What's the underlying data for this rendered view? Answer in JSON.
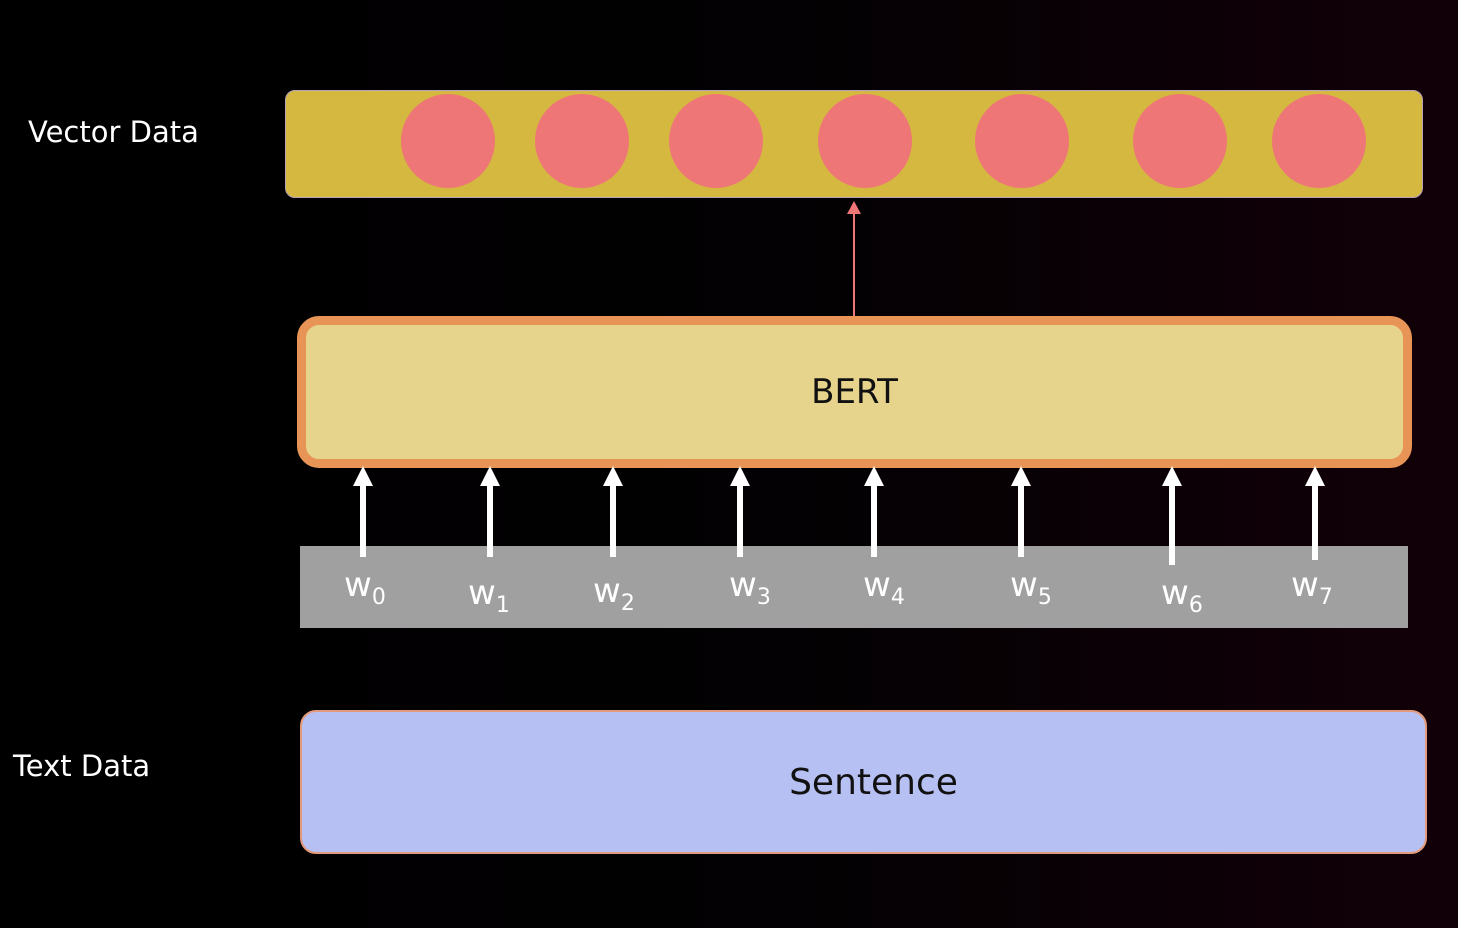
{
  "labels": {
    "vector_data": "Vector Data",
    "text_data": "Text Data"
  },
  "model": {
    "name": "BERT"
  },
  "input": {
    "name": "Sentence"
  },
  "vector": {
    "count": 7
  },
  "tokens": [
    {
      "base": "w",
      "sub": "0"
    },
    {
      "base": "w",
      "sub": "1"
    },
    {
      "base": "w",
      "sub": "2"
    },
    {
      "base": "w",
      "sub": "3"
    },
    {
      "base": "w",
      "sub": "4"
    },
    {
      "base": "w",
      "sub": "5"
    },
    {
      "base": "w",
      "sub": "6"
    },
    {
      "base": "w",
      "sub": "7"
    }
  ],
  "colors": {
    "vector_bar": "#d5b83f",
    "vector_circle": "#ee7676",
    "bert_fill": "#e7d48c",
    "bert_border": "#e89456",
    "token_strip": "#a0a0a0",
    "sentence_fill": "#b7c0f2",
    "output_arrow": "#ee7676",
    "input_arrow": "#ffffff"
  }
}
